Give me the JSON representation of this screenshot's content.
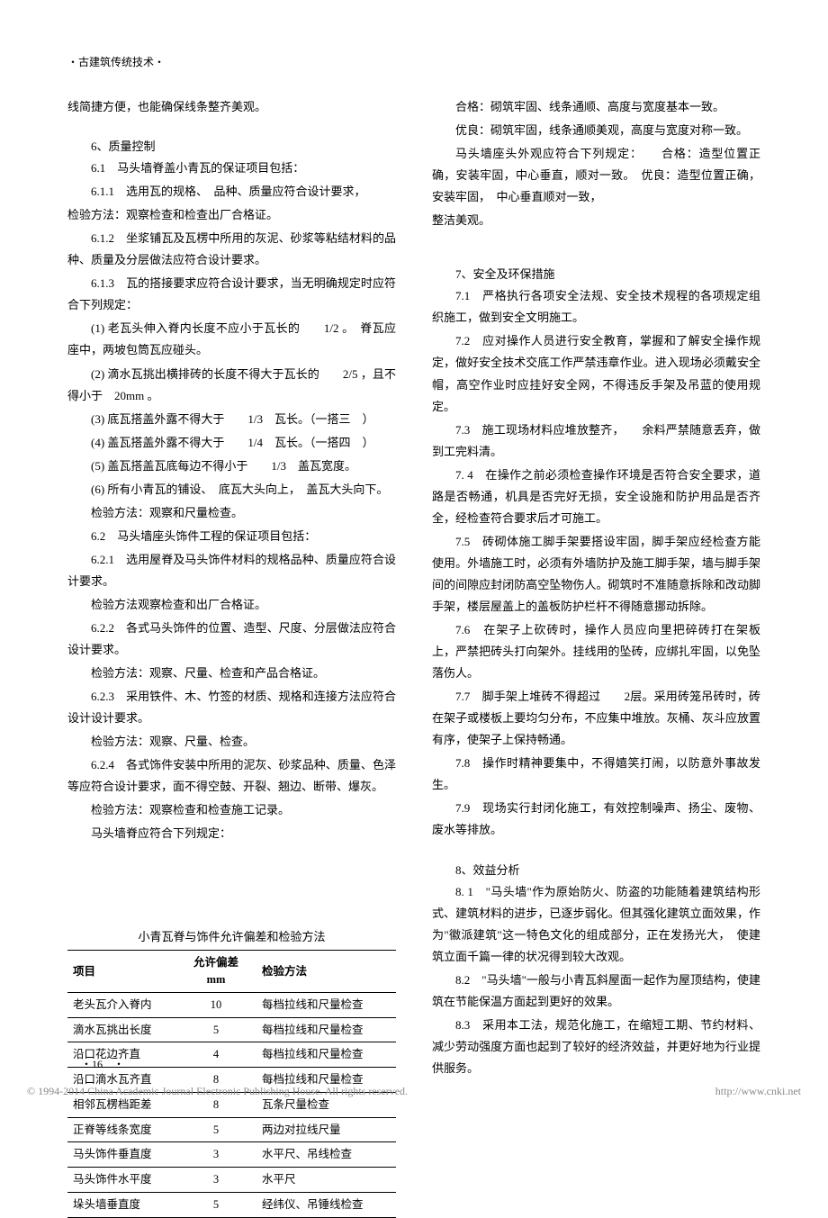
{
  "header": "・古建筑传统技术・",
  "left": {
    "intro": "线简捷方便，也能确保线条整齐美观。",
    "s6_title": "6、质量控制",
    "p6_1": "6.1　马头墙脊盖小青瓦的保证项目包括：",
    "p6_1_1": "6.1.1　选用瓦的规格、　品种、质量应符合设计要求，",
    "p6_1_1b": "检验方法：观察检查和检查出厂合格证。",
    "p6_1_2": "6.1.2　坐浆铺瓦及瓦楞中所用的灰泥、砂浆等粘结材料的品种、质量及分层做法应符合设计要求。",
    "p6_1_3": "6.1.3　瓦的搭接要求应符合设计要求，当无明确规定时应符合下列规定：",
    "p6_1_3_1": "(1) 老瓦头伸入脊内长度不应小于瓦长的　　1/2 。　脊瓦应座中，两坡包筒瓦应碰头。",
    "p6_1_3_2": "(2) 滴水瓦挑出横排砖的长度不得大于瓦长的　　2/5 ，且不得小于　20mm 。",
    "p6_1_3_3": "(3) 底瓦搭盖外露不得大于　　1/3　瓦长。（一搭三　）",
    "p6_1_3_4": "(4) 盖瓦搭盖外露不得大于　　1/4　瓦长。（一搭四　）",
    "p6_1_3_5": "(5) 盖瓦搭盖瓦底每边不得小于　　1/3　盖瓦宽度。",
    "p6_1_3_6": "(6) 所有小青瓦的铺设、　底瓦大头向上，　盖瓦大头向下。",
    "p6_1_3_chk": "检验方法：观察和尺量检查。",
    "p6_2": "6.2　马头墙座头饰件工程的保证项目包括：",
    "p6_2_1": "6.2.1　选用屋脊及马头饰件材料的规格品种、质量应符合设计要求。",
    "p6_2_1_chk": "检验方法观察检查和出厂合格证。",
    "p6_2_2": "6.2.2　各式马头饰件的位置、造型、尺度、分层做法应符合设计要求。",
    "p6_2_2_chk": "检验方法：观察、尺量、检查和产品合格证。",
    "p6_2_3": "6.2.3　采用铁件、木、竹签的材质、规格和连接方法应符合设计设计要求。",
    "p6_2_3_chk": "检验方法：观察、尺量、检查。",
    "p6_2_4": "6.2.4　各式饰件安装中所用的泥灰、砂浆品种、质量、色泽等应符合设计要求，面不得空鼓、开裂、翘边、断带、爆灰。",
    "p6_2_4_chk": "检验方法：观察检查和检查施工记录。",
    "p6_end": "马头墙脊应符合下列规定：",
    "table_title": "小青瓦脊与饰件允许偏差和检验方法",
    "table": {
      "headers": [
        "项目",
        "允许偏差　mm",
        "检验方法"
      ],
      "rows": [
        [
          "老头瓦介入脊内",
          "10",
          "每档拉线和尺量检查"
        ],
        [
          "滴水瓦挑出长度",
          "5",
          "每档拉线和尺量检查"
        ],
        [
          "沿口花边齐直",
          "4",
          "每档拉线和尺量检查"
        ],
        [
          "沿口滴水瓦齐直",
          "8",
          "每档拉线和尺量检查"
        ],
        [
          "相邻瓦楞档距差",
          "8",
          "瓦条尺量检查"
        ],
        [
          "正脊等线条宽度",
          "5",
          "两边对拉线尺量"
        ],
        [
          "马头饰件垂直度",
          "3",
          "水平尺、吊线检查"
        ],
        [
          "马头饰件水平度",
          "3",
          "水平尺"
        ],
        [
          "垛头墙垂直度",
          "5",
          "经纬仪、吊锤线检查"
        ]
      ]
    }
  },
  "right": {
    "r1": "合格：砌筑牢固、线条通顺、高度与宽度基本一致。",
    "r2": "优良：砌筑牢固，线条通顺美观，高度与宽度对称一致。",
    "r3": "马头墙座头外观应符合下列规定：　　合格：造型位置正确，安装牢固，中心垂直，顺对一致。　优良：造型位置正确，安装牢固，　中心垂直顺对一致，",
    "r4": "整洁美观。",
    "s7_title": "7、安全及环保措施",
    "p7_1": "7.1　严格执行各项安全法规、安全技术规程的各项规定组织施工，做到安全文明施工。",
    "p7_2": "7.2　应对操作人员进行安全教育，掌握和了解安全操作规定，做好安全技术交底工作严禁违章作业。进入现场必须戴安全帽，高空作业时应挂好安全网，不得违反手架及吊蓝的使用规定。",
    "p7_3": "7.3　施工现场材料应堆放整齐，　　余料严禁随意丢弃，做到工完料清。",
    "p7_4": "7. 4　在操作之前必须检查操作环境是否符合安全要求，道路是否畅通，机具是否完好无损，安全设施和防护用品是否齐全，经检查符合要求后才可施工。",
    "p7_5": "7.5　砖砌体施工脚手架要搭设牢固，脚手架应经检查方能使用。外墙施工时，必须有外墙防护及施工脚手架，墙与脚手架间的间隙应封闭防高空坠物伤人。砌筑时不准随意拆除和改动脚手架，楼层屋盖上的盖板防护栏杆不得随意挪动拆除。",
    "p7_6": "7.6　在架子上砍砖时，操作人员应向里把碎砖打在架板上，严禁把砖头打向架外。挂线用的坠砖，应绑扎牢固，以免坠落伤人。",
    "p7_7": "7.7　脚手架上堆砖不得超过　　2层。采用砖笼吊砖时，砖在架子或楼板上要均匀分布，不应集中堆放。灰桶、灰斗应放置有序，使架子上保持畅通。",
    "p7_8": "7.8　操作时精神要集中，不得嬉笑打闹，以防意外事故发生。",
    "p7_9": "7.9　现场实行封闭化施工，有效控制噪声、扬尘、废物、废水等排放。",
    "s8_title": "8、效益分析",
    "p8_1": "8. 1　\"马头墙\"作为原始防火、防盗的功能随着建筑结构形式、建筑材料的进步，已逐步弱化。但其强化建筑立面效果，作为\"徽派建筑\"这一特色文化的组成部分，正在发扬光大，　使建筑立面千篇一律的状况得到较大改观。",
    "p8_2": "8.2　\"马头墙\"一般与小青瓦斜屋面一起作为屋顶结构，使建筑在节能保温方面起到更好的效果。",
    "p8_3": "8.3　采用本工法，规范化施工，在缩短工期、节约材料、减少劳动强度方面也起到了较好的经济效益，并更好地为行业提供服务。"
  },
  "page_num": "・16　・",
  "footer_left": "© 1994-2014 China Academic Journal Electronic Publishing House. All rights reserved.",
  "footer_right": "http://www.cnki.net"
}
